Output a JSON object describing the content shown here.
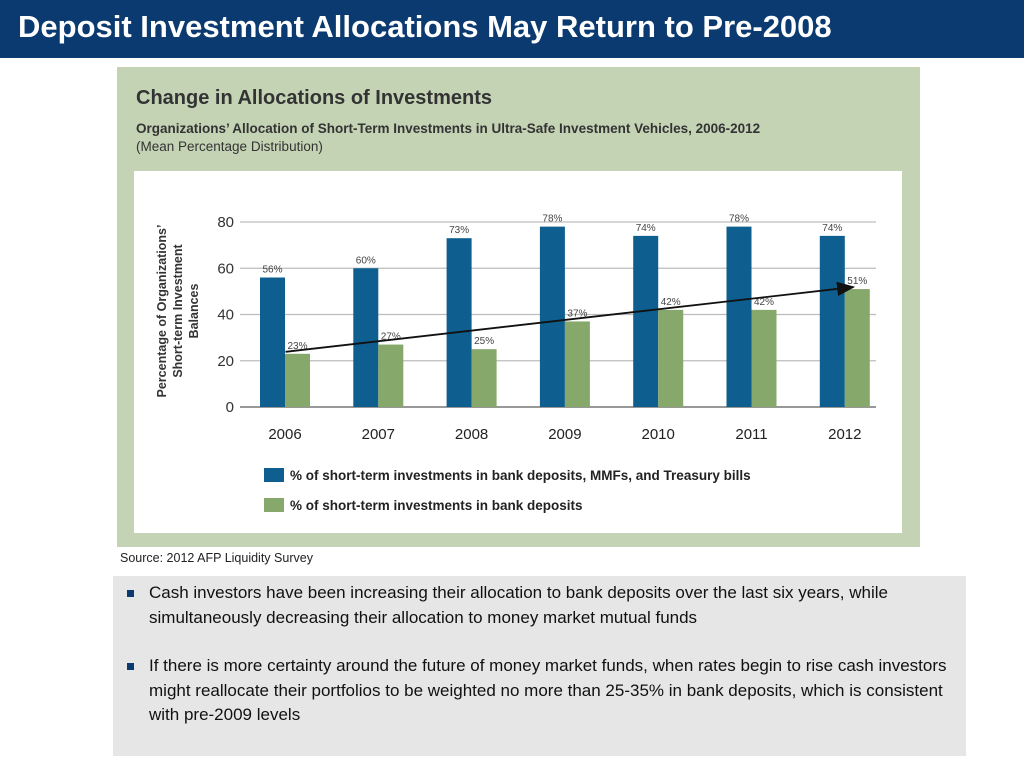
{
  "slide": {
    "title": "Deposit Investment Allocations May Return to Pre-2008",
    "source": "Source: 2012 AFP Liquidity Survey",
    "bullets": [
      "Cash investors have been increasing their allocation to bank deposits over the last six years, while simultaneously decreasing their allocation to money market mutual funds",
      "If there is more certainty around the future of money market funds, when rates begin to rise cash investors might reallocate their portfolios to be weighted no more than 25-35% in bank deposits, which is consistent with pre-2009 levels"
    ]
  },
  "chart_data": {
    "type": "bar",
    "title": "Change in Allocations of Investments",
    "subtitle": "Organizations’ Allocation of Short-Term Investments in Ultra-Safe Investment Vehicles, 2006-2012",
    "note": "(Mean Percentage Distribution)",
    "ylabel_lines": [
      "Percentage of Organizations’",
      "Short-term Investment",
      "Balances"
    ],
    "categories": [
      "2006",
      "2007",
      "2008",
      "2009",
      "2010",
      "2011",
      "2012"
    ],
    "yticks": [
      0,
      20,
      40,
      60,
      80
    ],
    "ylim": [
      0,
      80
    ],
    "series": [
      {
        "name": "% of short-term investments in bank deposits, MMFs, and Treasury bills",
        "values": [
          56,
          60,
          73,
          78,
          74,
          78,
          74
        ],
        "labels": [
          "56%",
          "60%",
          "73%",
          "78%",
          "74%",
          "78%",
          "74%"
        ],
        "color": "#0e5e8f"
      },
      {
        "name": "% of short-term investments in bank deposits",
        "values": [
          23,
          27,
          25,
          37,
          42,
          42,
          51
        ],
        "labels": [
          "23%",
          "27%",
          "25%",
          "37%",
          "42%",
          "42%",
          "51%"
        ],
        "color": "#86a86a"
      }
    ],
    "trend_arrow": {
      "series": 1,
      "from": "2006",
      "to": "2012"
    },
    "grid": true,
    "legend_position": "bottom"
  },
  "colors": {
    "title_bar": "#0b3a70",
    "figure_panel": "#c5d3b5",
    "bullets_box": "#e6e6e6",
    "bullet_marker": "#0b3a70"
  }
}
